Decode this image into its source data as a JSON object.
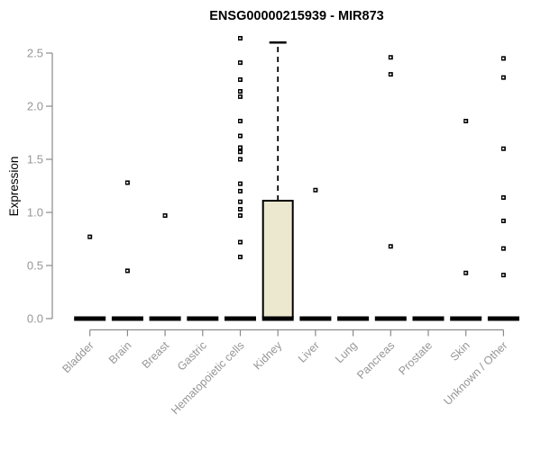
{
  "window": {
    "title": "ENSG00000215939 - MIR873"
  },
  "chart_data": {
    "type": "boxplot",
    "title": "ENSG00000215939 - MIR873",
    "xlabel": "",
    "ylabel": "Expression",
    "ylim": [
      0,
      2.5
    ],
    "yticks": [
      0.0,
      0.5,
      1.0,
      1.5,
      2.0,
      2.5
    ],
    "grid": false,
    "legend": "none",
    "categories": [
      "Bladder",
      "Brain",
      "Breast",
      "Gastric",
      "Hematopoietic cells",
      "Kidney",
      "Liver",
      "Lung",
      "Pancreas",
      "Prostate",
      "Skin",
      "Unknown / Other"
    ],
    "series": [
      {
        "category": "Bladder",
        "median": 0,
        "q1": 0,
        "q3": 0,
        "whisker_low": 0,
        "whisker_high": 0,
        "outliers": [
          0.77
        ]
      },
      {
        "category": "Brain",
        "median": 0,
        "q1": 0,
        "q3": 0,
        "whisker_low": 0,
        "whisker_high": 0,
        "outliers": [
          1.28,
          0.45
        ]
      },
      {
        "category": "Breast",
        "median": 0,
        "q1": 0,
        "q3": 0,
        "whisker_low": 0,
        "whisker_high": 0,
        "outliers": [
          0.97
        ]
      },
      {
        "category": "Gastric",
        "median": 0,
        "q1": 0,
        "q3": 0,
        "whisker_low": 0,
        "whisker_high": 0,
        "outliers": []
      },
      {
        "category": "Hematopoietic cells",
        "median": 0,
        "q1": 0,
        "q3": 0,
        "whisker_low": 0,
        "whisker_high": 0,
        "outliers": [
          2.64,
          2.41,
          2.25,
          2.14,
          2.09,
          1.86,
          1.72,
          1.61,
          1.57,
          1.5,
          1.27,
          1.2,
          1.1,
          1.03,
          0.97,
          0.72,
          0.58
        ]
      },
      {
        "category": "Kidney",
        "median": 0,
        "q1": 0,
        "q3": 1.11,
        "whisker_low": 0,
        "whisker_high": 2.6,
        "outliers": []
      },
      {
        "category": "Liver",
        "median": 0,
        "q1": 0,
        "q3": 0,
        "whisker_low": 0,
        "whisker_high": 0,
        "outliers": [
          1.21
        ]
      },
      {
        "category": "Lung",
        "median": 0,
        "q1": 0,
        "q3": 0,
        "whisker_low": 0,
        "whisker_high": 0,
        "outliers": []
      },
      {
        "category": "Pancreas",
        "median": 0,
        "q1": 0,
        "q3": 0,
        "whisker_low": 0,
        "whisker_high": 0,
        "outliers": [
          2.46,
          2.3,
          0.68
        ]
      },
      {
        "category": "Prostate",
        "median": 0,
        "q1": 0,
        "q3": 0,
        "whisker_low": 0,
        "whisker_high": 0,
        "outliers": []
      },
      {
        "category": "Skin",
        "median": 0,
        "q1": 0,
        "q3": 0,
        "whisker_low": 0,
        "whisker_high": 0,
        "outliers": [
          1.86,
          0.43
        ]
      },
      {
        "category": "Unknown / Other",
        "median": 0,
        "q1": 0,
        "q3": 0,
        "whisker_low": 0,
        "whisker_high": 0,
        "outliers": [
          2.45,
          2.27,
          1.6,
          1.14,
          0.92,
          0.66,
          0.41
        ]
      }
    ],
    "colors": {
      "box_fill": "#ece8cf",
      "box_stroke": "#000000",
      "median": "#000000",
      "outlier": "#000000",
      "axis": "#8a8a8a",
      "tick_label": "#969696",
      "title": "#000000"
    }
  }
}
